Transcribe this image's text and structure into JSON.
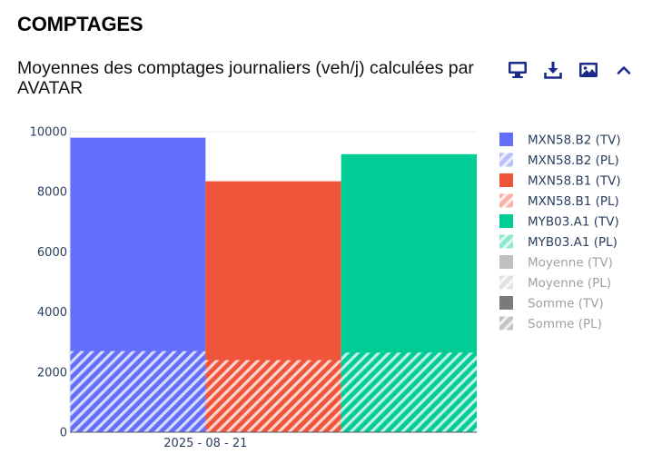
{
  "section": {
    "title": "COMPTAGES"
  },
  "toolbar": {
    "items": [
      {
        "name": "monitor-icon"
      },
      {
        "name": "download-icon"
      },
      {
        "name": "image-icon"
      },
      {
        "name": "chevron-up-icon"
      }
    ],
    "color": "#1a2a8a"
  },
  "chart_data": {
    "type": "bar",
    "barmode": "overlay",
    "title": "Moyennes des comptages journaliers (veh/j) calculées par AVATAR",
    "categories": [
      "2025 - 08 - 21"
    ],
    "y_ticks": [
      "0",
      "2000",
      "4000",
      "6000",
      "8000",
      "10000"
    ],
    "ylim": [
      0,
      10000
    ],
    "xlabel": "",
    "ylabel": "",
    "series": [
      {
        "name": "MXN58.B2 (TV)",
        "value": 9800,
        "color": "#636efa",
        "pattern": false,
        "offset": 0
      },
      {
        "name": "MXN58.B2 (PL)",
        "value": 2700,
        "color": "#636efa",
        "pattern": true,
        "offset": 0
      },
      {
        "name": "MXN58.B1 (TV)",
        "value": 8350,
        "color": "#ef553b",
        "pattern": false,
        "offset": 1
      },
      {
        "name": "MXN58.B1 (PL)",
        "value": 2400,
        "color": "#ef553b",
        "pattern": true,
        "offset": 1
      },
      {
        "name": "MYB03.A1 (TV)",
        "value": 9250,
        "color": "#00cc96",
        "pattern": false,
        "offset": 2
      },
      {
        "name": "MYB03.A1 (PL)",
        "value": 2650,
        "color": "#00cc96",
        "pattern": true,
        "offset": 2
      }
    ],
    "legend": [
      {
        "label": "MXN58.B2 (TV)",
        "color": "#636efa",
        "pattern": false,
        "hidden": false
      },
      {
        "label": "MXN58.B2 (PL)",
        "color": "#636efa",
        "pattern": true,
        "hidden": false
      },
      {
        "label": "MXN58.B1 (TV)",
        "color": "#ef553b",
        "pattern": false,
        "hidden": false
      },
      {
        "label": "MXN58.B1 (PL)",
        "color": "#ef553b",
        "pattern": true,
        "hidden": false
      },
      {
        "label": "MYB03.A1 (TV)",
        "color": "#00cc96",
        "pattern": false,
        "hidden": false
      },
      {
        "label": "MYB03.A1 (PL)",
        "color": "#00cc96",
        "pattern": true,
        "hidden": false
      },
      {
        "label": "Moyenne (TV)",
        "color": "#c0c0c0",
        "pattern": false,
        "hidden": true
      },
      {
        "label": "Moyenne (PL)",
        "color": "#c0c0c0",
        "pattern": true,
        "hidden": true
      },
      {
        "label": "Somme (TV)",
        "color": "#7a7a7a",
        "pattern": false,
        "hidden": true
      },
      {
        "label": "Somme (PL)",
        "color": "#7a7a7a",
        "pattern": true,
        "hidden": true
      }
    ],
    "legend_position": "right",
    "legend_text_color": "#2a3f5f",
    "legend_hidden_text_color": "#a0a0a0"
  }
}
